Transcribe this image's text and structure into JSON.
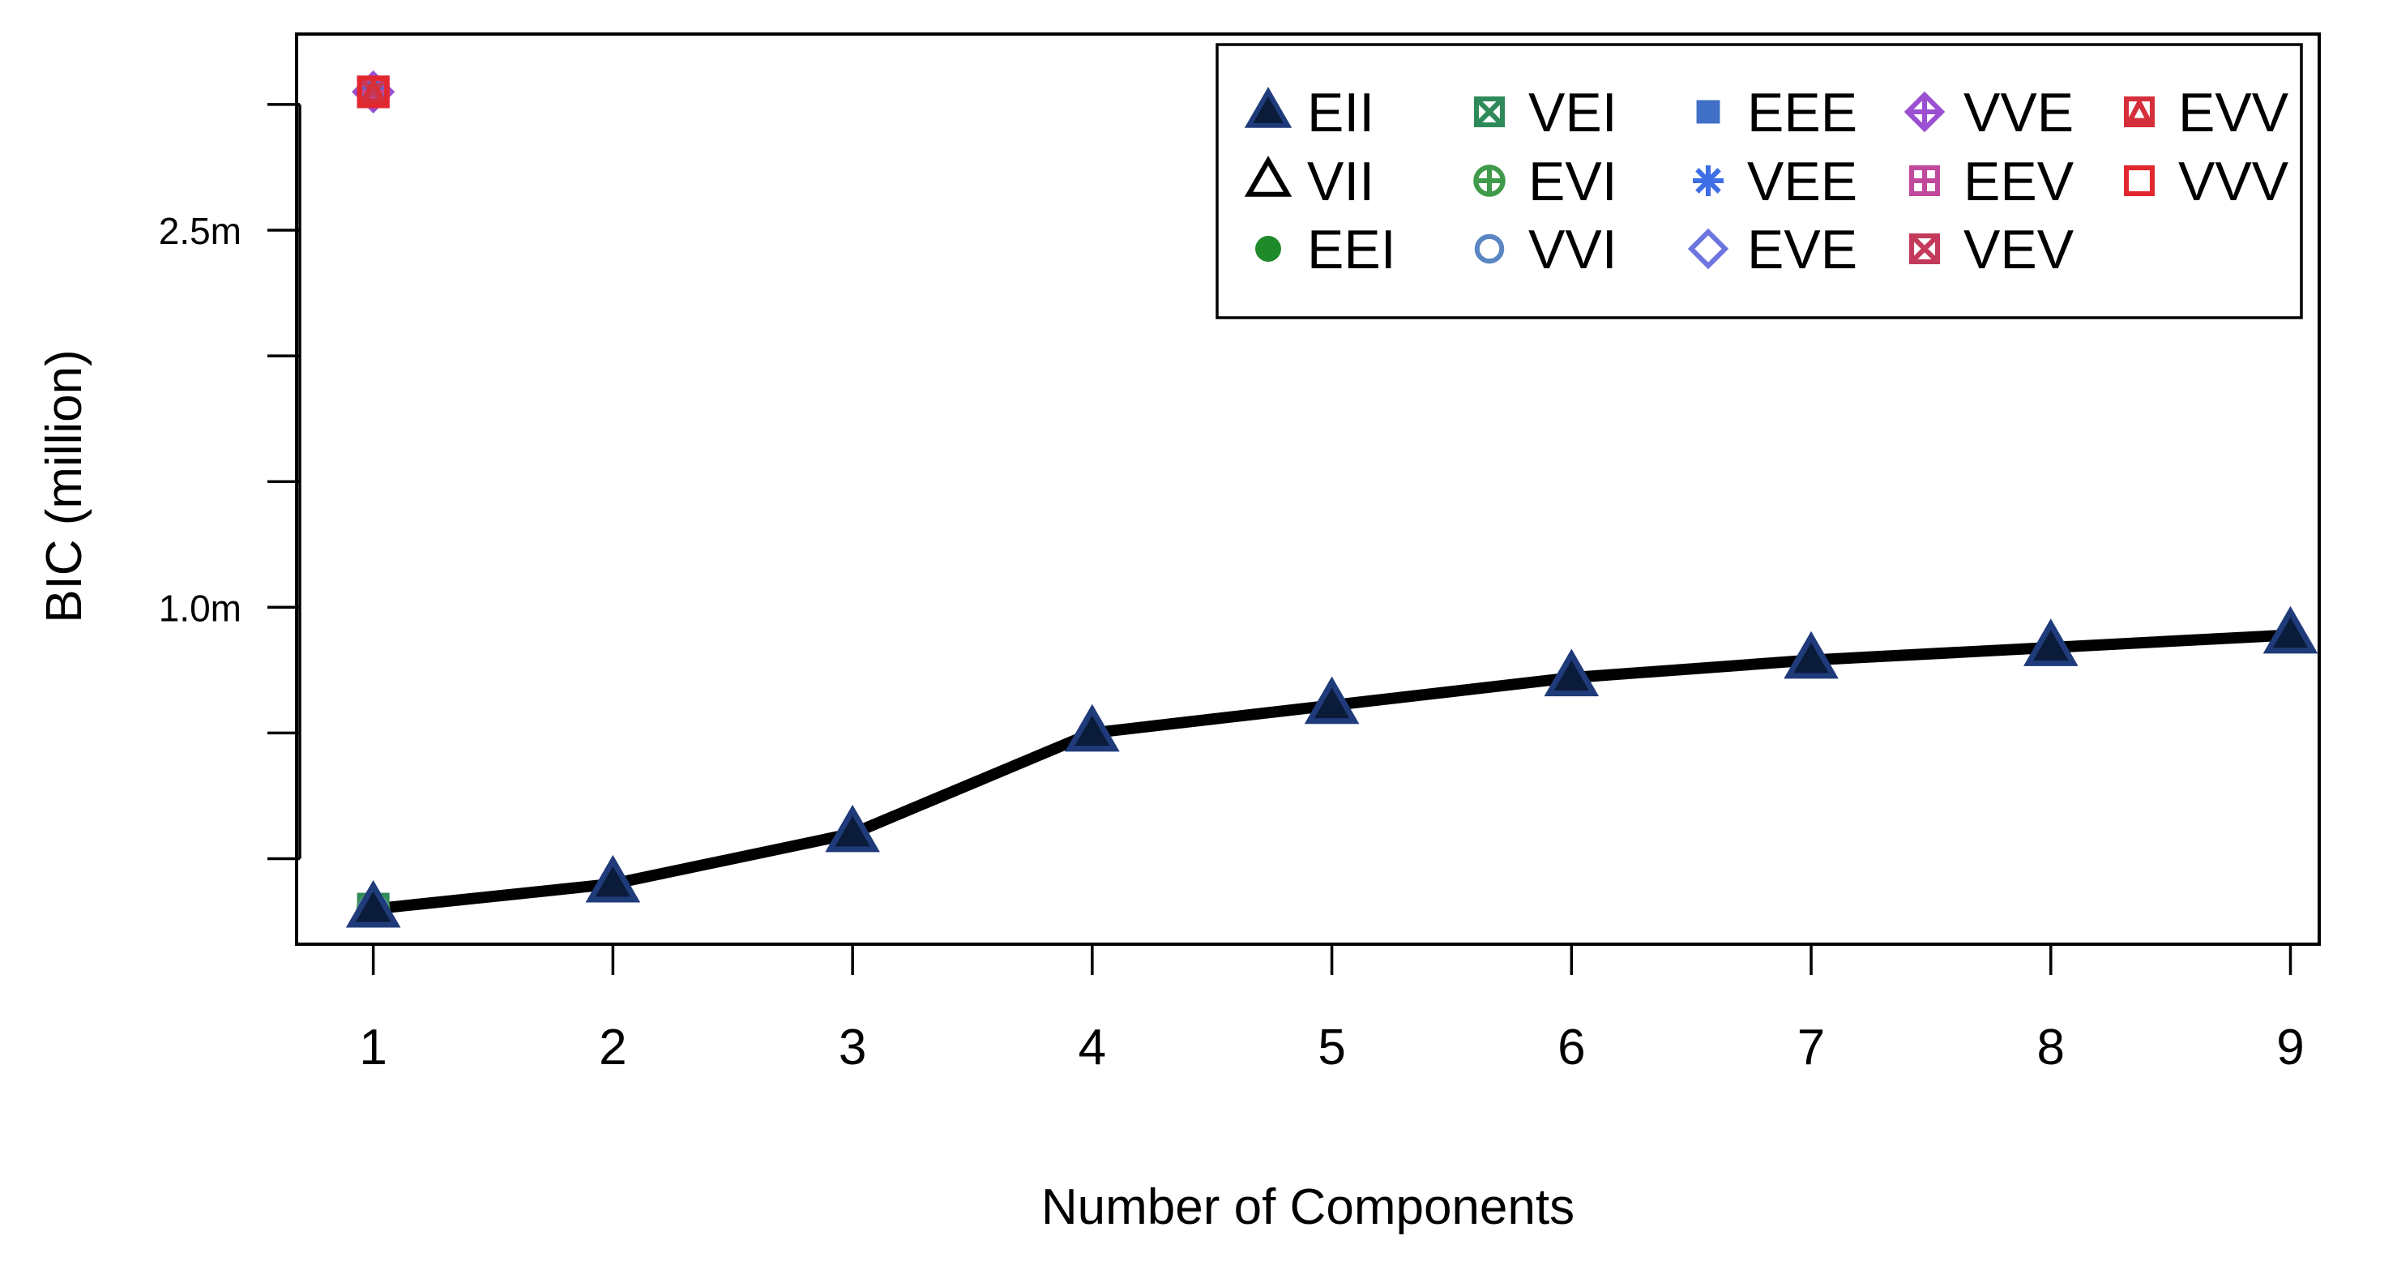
{
  "chart_data": {
    "type": "line",
    "xlabel": "Number of Components",
    "ylabel": "BIC (million)",
    "x": [
      1,
      2,
      3,
      4,
      5,
      6,
      7,
      8,
      9
    ],
    "x_ticks": [
      "1",
      "2",
      "3",
      "4",
      "5",
      "6",
      "7",
      "8",
      "9"
    ],
    "xlim": [
      0.68,
      9.12
    ],
    "y_ticks": [
      {
        "value": 2.5,
        "label": "2.5m",
        "labeled": true
      },
      {
        "value": 1.0,
        "label": "1.0m",
        "labeled": true
      }
    ],
    "y_minor_ticks": [
      0.0,
      0.5,
      1.5,
      2.0,
      3.0
    ],
    "ylim": [
      -0.34,
      3.28
    ],
    "grid": false,
    "legend_position": "top-right",
    "legend_columns": 5,
    "series": [
      {
        "name": "EII",
        "symbol": "filled-triangle",
        "color": "#0b1b3a",
        "line": true,
        "points": [
          [
            1,
            -0.2
          ],
          [
            2,
            -0.1
          ],
          [
            3,
            0.1
          ],
          [
            4,
            0.5
          ],
          [
            5,
            0.61
          ],
          [
            6,
            0.72
          ],
          [
            7,
            0.79
          ],
          [
            8,
            0.84
          ],
          [
            9,
            0.89
          ]
        ]
      },
      {
        "name": "VII",
        "symbol": "open-triangle",
        "color": "#000000",
        "line": false,
        "points": [
          [
            1,
            -0.2
          ]
        ]
      },
      {
        "name": "EEI",
        "symbol": "filled-circle",
        "color": "#1e8a2a",
        "line": false,
        "points": [
          [
            1,
            -0.2
          ]
        ]
      },
      {
        "name": "VEI",
        "symbol": "boxed-x",
        "color": "#2f8a5b",
        "line": false,
        "points": [
          [
            1,
            -0.2
          ]
        ]
      },
      {
        "name": "EVI",
        "symbol": "circle-plus",
        "color": "#3f9a4a",
        "line": false,
        "points": [
          [
            1,
            -0.2
          ]
        ]
      },
      {
        "name": "VVI",
        "symbol": "open-circle",
        "color": "#5a86c2",
        "line": false,
        "points": [
          [
            1,
            -0.2
          ]
        ]
      },
      {
        "name": "EEE",
        "symbol": "filled-square",
        "color": "#3f6fc6",
        "line": false,
        "points": [
          [
            1,
            3.05
          ]
        ]
      },
      {
        "name": "VEE",
        "symbol": "asterisk",
        "color": "#3f6fe6",
        "line": false,
        "points": [
          [
            1,
            3.05
          ]
        ]
      },
      {
        "name": "EVE",
        "symbol": "open-diamond",
        "color": "#6e74e0",
        "line": false,
        "points": [
          [
            1,
            3.05
          ]
        ]
      },
      {
        "name": "VVE",
        "symbol": "diamond-plus",
        "color": "#9b4fd1",
        "line": false,
        "points": [
          [
            1,
            3.05
          ]
        ]
      },
      {
        "name": "EEV",
        "symbol": "square-plus",
        "color": "#c0499b",
        "line": false,
        "points": [
          [
            1,
            3.05
          ]
        ]
      },
      {
        "name": "VEV",
        "symbol": "boxed-x",
        "color": "#c43a5a",
        "line": false,
        "points": [
          [
            1,
            3.05
          ]
        ]
      },
      {
        "name": "EVV",
        "symbol": "square-triangle",
        "color": "#d42f3a",
        "line": false,
        "points": [
          [
            1,
            3.05
          ]
        ]
      },
      {
        "name": "VVV",
        "symbol": "open-square",
        "color": "#e2282f",
        "line": false,
        "points": [
          [
            1,
            3.05
          ]
        ]
      }
    ]
  }
}
